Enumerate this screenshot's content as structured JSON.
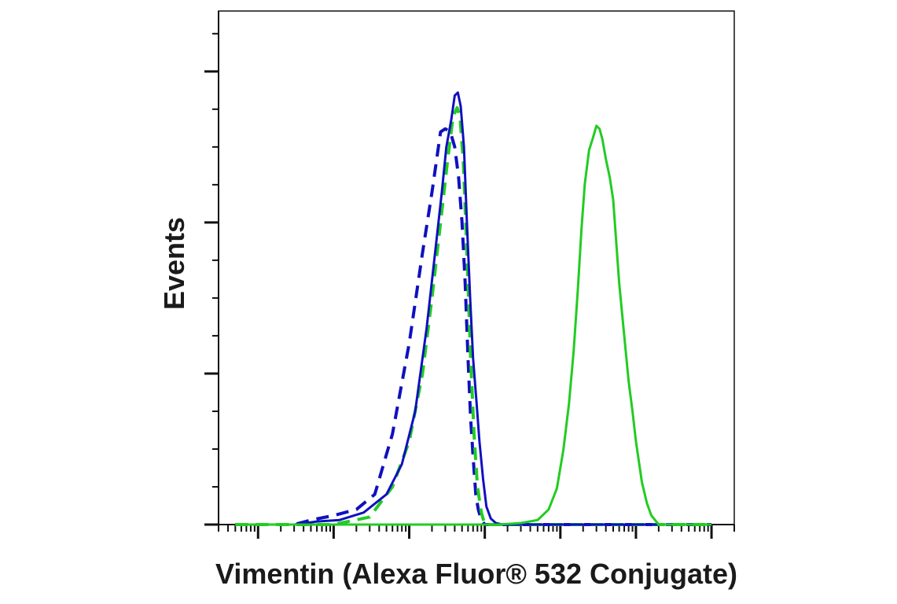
{
  "chart_data": {
    "type": "line",
    "title": "",
    "xlabel": "Vimentin (Alexa Fluor® 532 Conjugate)",
    "ylabel": "Events",
    "x_scale": "log",
    "xlim": [
      0.3,
      2000000
    ],
    "ylim": [
      0,
      340
    ],
    "x_tick_labels": [],
    "y_tick_labels": [],
    "grid": false,
    "legend": "none",
    "series": [
      {
        "style": "dashed",
        "color": "#1010c0",
        "points": [
          [
            0.5,
            0
          ],
          [
            3,
            0
          ],
          [
            5,
            3
          ],
          [
            10,
            6
          ],
          [
            20,
            10
          ],
          [
            35,
            20
          ],
          [
            60,
            60
          ],
          [
            100,
            120
          ],
          [
            150,
            180
          ],
          [
            200,
            220
          ],
          [
            260,
            260
          ],
          [
            300,
            262
          ],
          [
            350,
            260
          ],
          [
            400,
            250
          ],
          [
            450,
            230
          ],
          [
            500,
            200
          ],
          [
            550,
            160
          ],
          [
            600,
            110
          ],
          [
            650,
            70
          ],
          [
            700,
            45
          ],
          [
            760,
            20
          ],
          [
            820,
            10
          ],
          [
            900,
            3
          ],
          [
            1000,
            0
          ],
          [
            1000000,
            0
          ]
        ]
      },
      {
        "style": "dashed",
        "color": "#22cc22",
        "points": [
          [
            0.5,
            0
          ],
          [
            10,
            0
          ],
          [
            30,
            5
          ],
          [
            60,
            25
          ],
          [
            100,
            55
          ],
          [
            150,
            100
          ],
          [
            200,
            150
          ],
          [
            260,
            200
          ],
          [
            320,
            240
          ],
          [
            380,
            270
          ],
          [
            430,
            276
          ],
          [
            470,
            270
          ],
          [
            520,
            240
          ],
          [
            580,
            180
          ],
          [
            650,
            110
          ],
          [
            720,
            60
          ],
          [
            800,
            25
          ],
          [
            900,
            8
          ],
          [
            1000,
            0
          ],
          [
            1000000,
            0
          ]
        ]
      },
      {
        "style": "solid",
        "color": "#1010c0",
        "points": [
          [
            0.5,
            0
          ],
          [
            3,
            0
          ],
          [
            6,
            2
          ],
          [
            12,
            3
          ],
          [
            25,
            8
          ],
          [
            50,
            20
          ],
          [
            80,
            40
          ],
          [
            120,
            75
          ],
          [
            170,
            130
          ],
          [
            220,
            180
          ],
          [
            270,
            220
          ],
          [
            310,
            250
          ],
          [
            360,
            268
          ],
          [
            400,
            284
          ],
          [
            440,
            286
          ],
          [
            480,
            277
          ],
          [
            530,
            250
          ],
          [
            580,
            200
          ],
          [
            640,
            150
          ],
          [
            700,
            110
          ],
          [
            780,
            80
          ],
          [
            850,
            55
          ],
          [
            950,
            30
          ],
          [
            1050,
            12
          ],
          [
            1200,
            4
          ],
          [
            1400,
            1
          ],
          [
            1700,
            0
          ],
          [
            1000000,
            0
          ]
        ]
      },
      {
        "style": "solid",
        "color": "#22cc22",
        "points": [
          [
            0.5,
            0
          ],
          [
            1500,
            0
          ],
          [
            3000,
            1
          ],
          [
            5000,
            3
          ],
          [
            7000,
            10
          ],
          [
            9000,
            24
          ],
          [
            11000,
            50
          ],
          [
            13000,
            80
          ],
          [
            15000,
            115
          ],
          [
            17000,
            155
          ],
          [
            19000,
            195
          ],
          [
            21000,
            225
          ],
          [
            24000,
            248
          ],
          [
            27000,
            256
          ],
          [
            30000,
            264
          ],
          [
            33000,
            262
          ],
          [
            36000,
            255
          ],
          [
            40000,
            242
          ],
          [
            45000,
            230
          ],
          [
            50000,
            215
          ],
          [
            60000,
            160
          ],
          [
            70000,
            125
          ],
          [
            80000,
            95
          ],
          [
            90000,
            75
          ],
          [
            100000,
            55
          ],
          [
            120000,
            28
          ],
          [
            140000,
            14
          ],
          [
            160000,
            6
          ],
          [
            200000,
            0
          ],
          [
            1000000,
            0
          ]
        ]
      }
    ]
  }
}
